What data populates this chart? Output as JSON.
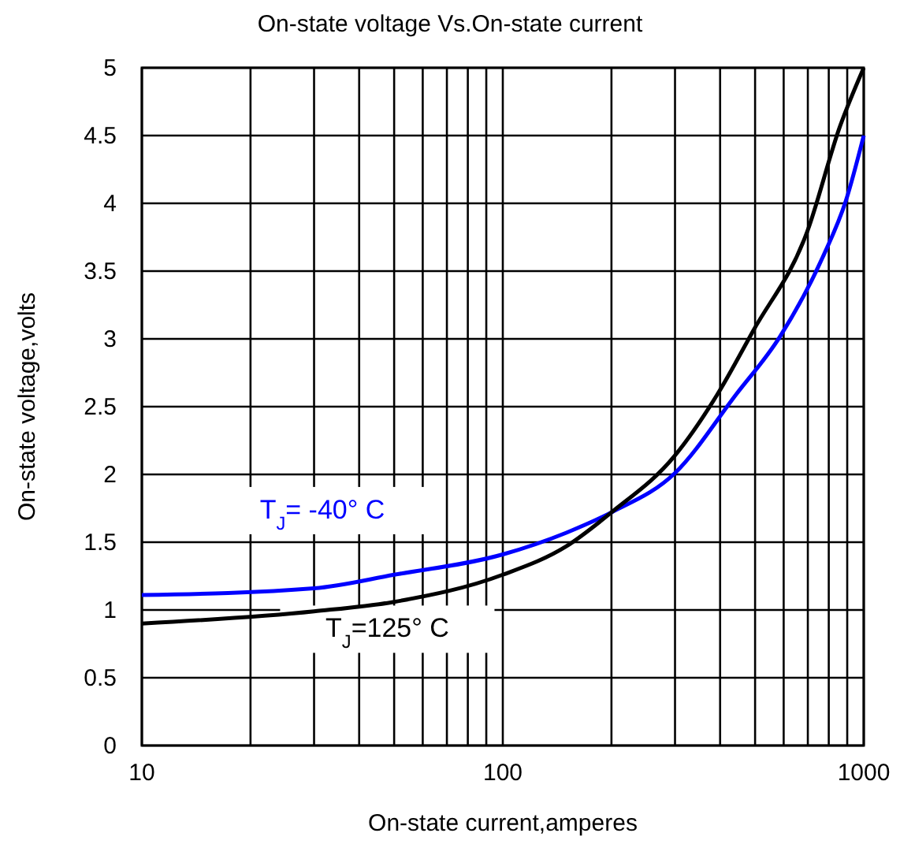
{
  "chart_data": {
    "type": "line",
    "title": "On-state voltage  Vs.On-state current",
    "xlabel": "On-state current,amperes",
    "ylabel": "On-state voltage,volts",
    "log": "x",
    "xlim": [
      10,
      1000
    ],
    "xticks": [
      10,
      100,
      1000
    ],
    "ylim": [
      0,
      5
    ],
    "yticks": [
      0,
      0.5,
      1,
      1.5,
      2,
      2.5,
      3,
      3.5,
      4,
      4.5,
      5
    ],
    "grid": true,
    "line_style": "solid",
    "series": [
      {
        "name": "T$_{J}$= -40° C",
        "color": "#0000ff",
        "x": [
          10,
          30,
          50,
          100,
          150,
          200,
          300,
          443,
          587,
          769,
          895,
          1000
        ],
        "values": [
          1.11,
          1.16,
          1.26,
          1.41,
          1.57,
          1.72,
          2.01,
          2.59,
          3.02,
          3.6,
          4.03,
          4.5
        ]
      },
      {
        "name": "T$_{J}$=125° C",
        "color": "#000000",
        "x": [
          10,
          30,
          50,
          100,
          150,
          200,
          300,
          393,
          494,
          697,
          860,
          1000
        ],
        "values": [
          0.9,
          0.99,
          1.06,
          1.26,
          1.47,
          1.72,
          2.14,
          2.59,
          3.06,
          3.79,
          4.57,
          5.0
        ]
      }
    ]
  }
}
